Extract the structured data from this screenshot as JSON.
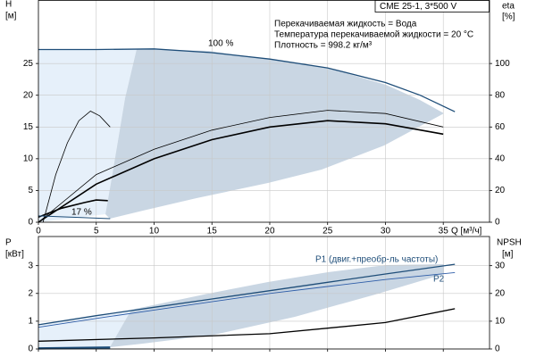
{
  "chart_data": [
    {
      "type": "line",
      "info_box": "CME 25-1, 3*500 V",
      "notes": [
        "Перекачиваемая жидкость = Вода",
        "Температура перекачиваемой жидкости = 20 °C",
        "Плотность = 998.2 кг/м³"
      ],
      "x_label": "Q [м³/ч]",
      "y_label": [
        "H",
        "[м]"
      ],
      "y2_label": [
        "eta",
        "[%]"
      ],
      "xlim": [
        0,
        39
      ],
      "ylim": [
        0,
        35
      ],
      "y2lim": [
        0,
        140
      ],
      "xticks": [
        0,
        5,
        10,
        15,
        20,
        25,
        30,
        35
      ],
      "yticks": [
        0,
        5,
        10,
        15,
        20,
        25
      ],
      "y2ticks": [
        0,
        20,
        40,
        60,
        80,
        100
      ],
      "grid": true,
      "series": [
        {
          "name": "100 %",
          "color": "#1f4e79",
          "line_width": 1.3,
          "x": [
            0,
            5,
            10,
            15,
            20,
            25,
            30,
            33,
            36
          ],
          "values": [
            27.2,
            27.2,
            27.3,
            26.7,
            25.7,
            24.3,
            22.0,
            20.0,
            17.4
          ]
        },
        {
          "color": "#000000",
          "line_width": 0.8,
          "axis": "y2",
          "x": [
            0,
            5,
            10,
            15,
            20,
            25,
            30,
            35
          ],
          "values": [
            0,
            30,
            46,
            58,
            66,
            70.5,
            68.5,
            60
          ]
        },
        {
          "color": "#000000",
          "line_width": 1.6,
          "axis": "y2",
          "x": [
            0,
            5,
            10,
            15,
            20,
            25,
            30,
            35
          ],
          "values": [
            0,
            24,
            40,
            52,
            60,
            64,
            62,
            55.5
          ]
        },
        {
          "color": "#000000",
          "line_width": 0.8,
          "axis": "y2",
          "x": [
            0.4,
            1.5,
            2.5,
            3.5,
            4.5,
            5.3,
            6.2
          ],
          "values": [
            0,
            30,
            50,
            64,
            70,
            67,
            60
          ]
        },
        {
          "name": "17 %",
          "color": "#000000",
          "line_width": 1.6,
          "x": [
            0,
            2,
            4,
            5,
            6
          ],
          "values": [
            0.8,
            2.2,
            3.1,
            3.5,
            3.4
          ]
        },
        {
          "color": "#1f4e79",
          "line_width": 1,
          "x": [
            0,
            6.2
          ],
          "values": [
            1.0,
            0.56
          ]
        }
      ]
    },
    {
      "type": "line",
      "y_label": [
        "P",
        "[кВт]"
      ],
      "y2_label": [
        "NPSH",
        "[м]"
      ],
      "xlim": [
        0,
        39
      ],
      "ylim": [
        0,
        4.05
      ],
      "y2lim": [
        0,
        40.5
      ],
      "xticks": [
        0,
        5,
        10,
        15,
        20,
        25,
        30,
        35
      ],
      "yticks": [
        0,
        1,
        2,
        3
      ],
      "y2ticks": [
        0,
        10,
        20,
        30
      ],
      "grid": true,
      "series": [
        {
          "name": "P1 (двиг.+преобр-ль частоты)",
          "color": "#1f4e79",
          "line_width": 1.3,
          "x": [
            0,
            5,
            10,
            15,
            20,
            25,
            30,
            36
          ],
          "values": [
            0.87,
            1.2,
            1.5,
            1.8,
            2.1,
            2.4,
            2.7,
            3.05
          ]
        },
        {
          "name": "P2",
          "color": "#2e5da8",
          "line_width": 0.9,
          "x": [
            0,
            5,
            10,
            15,
            20,
            25,
            30,
            36
          ],
          "values": [
            0.78,
            1.1,
            1.4,
            1.7,
            2.0,
            2.25,
            2.5,
            2.75
          ]
        },
        {
          "color": "#000000",
          "line_width": 1.3,
          "axis": "y2",
          "x": [
            0,
            10,
            20,
            25,
            30,
            36
          ],
          "values": [
            2.8,
            4,
            5.5,
            7.5,
            9.5,
            14.5
          ]
        },
        {
          "color": "#1f4e79",
          "line_width": 2.5,
          "x": [
            0,
            6.2
          ],
          "values": [
            0.02,
            0.05
          ]
        }
      ]
    }
  ]
}
